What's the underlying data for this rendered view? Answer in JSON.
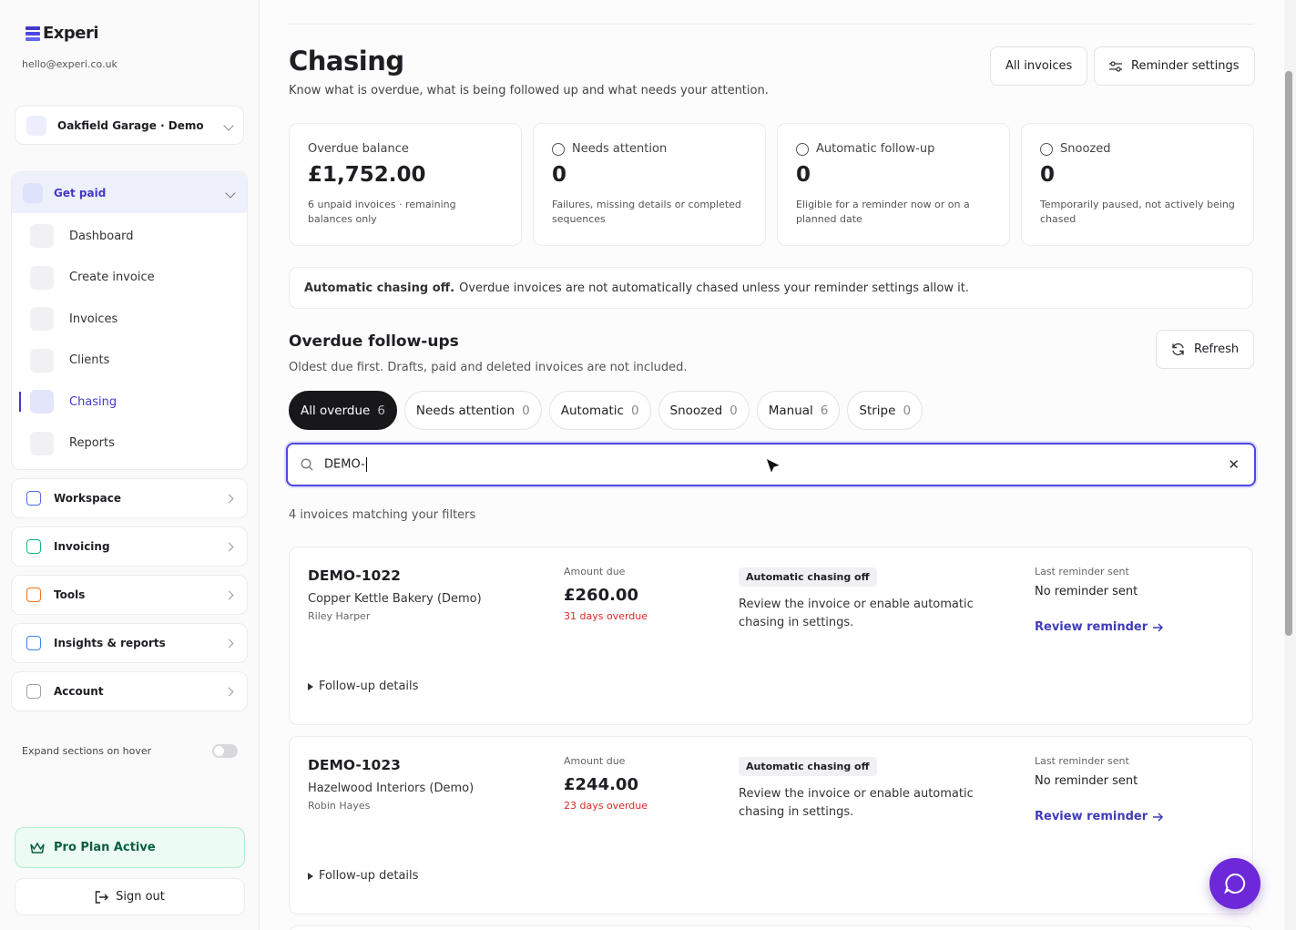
{
  "sidebar": {
    "brand": "Experi",
    "email": "hello@experi.co.uk",
    "organisation": "Oakfield Garage · Demo",
    "get_paid": {
      "title": "Get paid",
      "items": [
        {
          "label": "Dashboard"
        },
        {
          "label": "Create invoice"
        },
        {
          "label": "Invoices"
        },
        {
          "label": "Clients"
        },
        {
          "label": "Chasing",
          "active": true
        },
        {
          "label": "Reports"
        }
      ]
    },
    "sections": [
      "Workspace",
      "Invoicing",
      "Tools",
      "Insights & reports",
      "Account"
    ],
    "expand_hover": "Expand sections on hover",
    "plan": "Pro Plan Active",
    "sign_out": "Sign out"
  },
  "header": {
    "title": "Chasing",
    "subtitle": "Know what is overdue, what is being followed up and what needs your attention.",
    "buttons": [
      "All invoices",
      "Reminder settings"
    ]
  },
  "stats": [
    {
      "label": "Overdue balance",
      "value": "£1,752.00",
      "description": "6 unpaid invoices · remaining balances only"
    },
    {
      "label": "Needs attention",
      "value": "0",
      "description": "Failures, missing details or completed sequences"
    },
    {
      "label": "Automatic follow-up",
      "value": "0",
      "description": "Eligible for a reminder now or on a planned date"
    },
    {
      "label": "Snoozed",
      "value": "0",
      "description": "Temporarily paused, not actively being chased"
    }
  ],
  "notice": {
    "strong": "Automatic chasing off.",
    "text": "Overdue invoices are not automatically chased unless your reminder settings allow it."
  },
  "followups": {
    "title": "Overdue follow-ups",
    "subtitle": "Oldest due first. Drafts, paid and deleted invoices are not included.",
    "refresh": "Refresh",
    "tabs": [
      {
        "label": "All overdue",
        "count": 6,
        "active": true
      },
      {
        "label": "Needs attention",
        "count": 0
      },
      {
        "label": "Automatic",
        "count": 0
      },
      {
        "label": "Snoozed",
        "count": 0
      },
      {
        "label": "Manual",
        "count": 6
      },
      {
        "label": "Stripe",
        "count": 0
      }
    ],
    "search": "DEMO-",
    "result_count": "4 invoices matching your filters",
    "invoices": [
      {
        "id": "DEMO-1022",
        "client": "Copper Kettle Bakery (Demo)",
        "contact": "Riley Harper",
        "amount_label": "Amount due",
        "amount": "£260.00",
        "overdue": "31 days overdue",
        "badge": "Automatic chasing off",
        "message": "Review the invoice or enable automatic chasing in settings.",
        "last_label": "Last reminder sent",
        "last_value": "No reminder sent",
        "link": "Review reminder",
        "details": "Follow-up details"
      },
      {
        "id": "DEMO-1023",
        "client": "Hazelwood Interiors (Demo)",
        "contact": "Robin Hayes",
        "amount_label": "Amount due",
        "amount": "£244.00",
        "overdue": "23 days overdue",
        "badge": "Automatic chasing off",
        "message": "Review the invoice or enable automatic chasing in settings.",
        "last_label": "Last reminder sent",
        "last_value": "No reminder sent",
        "link": "Review reminder",
        "details": "Follow-up details"
      }
    ]
  }
}
